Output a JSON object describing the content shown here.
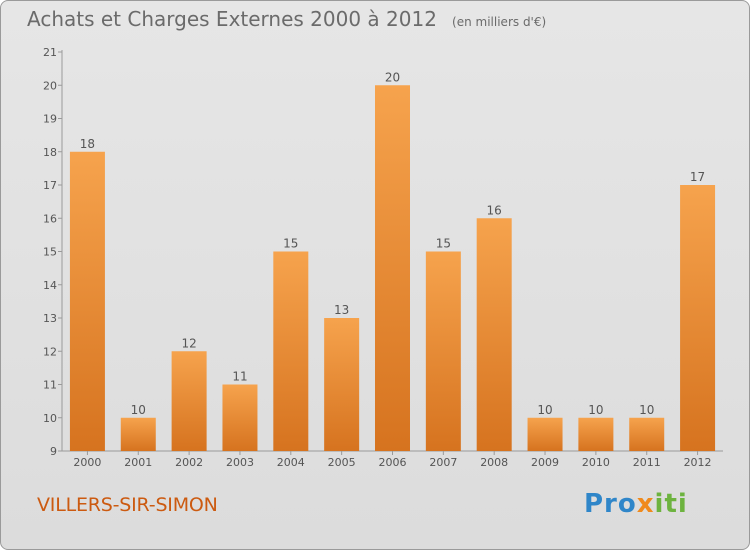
{
  "header": {
    "title": "Achats et Charges Externes 2000 à 2012",
    "unit": "(en milliers d'€)"
  },
  "footer": {
    "commune": "VILLERS-SIR-SIMON",
    "logo_part1": "Pro",
    "logo_part2": "x",
    "logo_part3": "iti"
  },
  "colors": {
    "bar_light": "#f6a34d",
    "bar_dark": "#d6731f",
    "commune": "#cc5a10",
    "axis_text": "#555555"
  },
  "chart_data": {
    "type": "bar",
    "categories": [
      "2000",
      "2001",
      "2002",
      "2003",
      "2004",
      "2005",
      "2006",
      "2007",
      "2008",
      "2009",
      "2010",
      "2011",
      "2012"
    ],
    "values": [
      18,
      10,
      12,
      11,
      15,
      13,
      20,
      15,
      16,
      10,
      10,
      10,
      17
    ],
    "data_labels": [
      "18",
      "10",
      "12",
      "11",
      "15",
      "13",
      "20",
      "15",
      "16",
      "10",
      "10",
      "10",
      "17"
    ],
    "yticks": [
      9,
      10,
      11,
      12,
      13,
      14,
      15,
      16,
      17,
      18,
      19,
      20,
      21
    ],
    "ylim": [
      9,
      21
    ],
    "title": "Achats et Charges Externes 2000 à 2012",
    "xlabel": "",
    "ylabel": "",
    "grid": false,
    "legend": "none"
  }
}
